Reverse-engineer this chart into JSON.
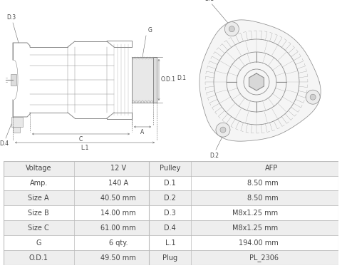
{
  "background_color": "#ffffff",
  "table_border_color": "#bbbbbb",
  "table_row_bg_odd": "#eeeeee",
  "table_row_bg_even": "#ffffff",
  "table_data": [
    [
      "Voltage",
      "12 V",
      "Pulley",
      "AFP"
    ],
    [
      "Amp.",
      "140 A",
      "D.1",
      "8.50 mm"
    ],
    [
      "Size A",
      "40.50 mm",
      "D.2",
      "8.50 mm"
    ],
    [
      "Size B",
      "14.00 mm",
      "D.3",
      "M8x1.25 mm"
    ],
    [
      "Size C",
      "61.00 mm",
      "D.4",
      "M8x1.25 mm"
    ],
    [
      "G",
      "6 qty.",
      "L.1",
      "194.00 mm"
    ],
    [
      "O.D.1",
      "49.50 mm",
      "Plug",
      "PL_2306"
    ]
  ],
  "font_size_table": 7.0,
  "line_color": "#888888",
  "label_fontsize": 5.5,
  "lw_main": 0.7,
  "lw_dim": 0.4
}
